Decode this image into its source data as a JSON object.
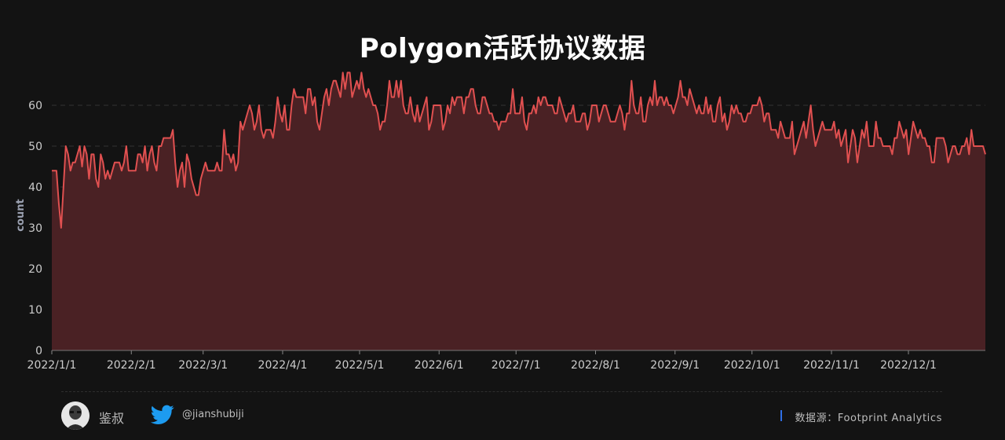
{
  "title": "Polygon活跃协议数据",
  "footer": {
    "author": "鉴叔",
    "handle": "@jianshubiji",
    "source_label": "数据源：",
    "source_name": "Footprint  Analytics"
  },
  "colors": {
    "background": "#131313",
    "line": "#e05050",
    "area": "#4a2124",
    "grid": "#333333",
    "text": "#cccccc",
    "twitter": "#1d9bf0",
    "accent": "#2f6fe6"
  },
  "icons": [
    "avatar",
    "twitter-icon"
  ],
  "chart_data": {
    "type": "area",
    "title": "Polygon活跃协议数据",
    "xlabel": "",
    "ylabel": "count",
    "ylim": [
      0,
      70
    ],
    "yticks": [
      0,
      10,
      20,
      30,
      40,
      50,
      60
    ],
    "grid": true,
    "x_start": "2022/1/1",
    "x_end": "2022/12/31",
    "xtick_labels": [
      "2022/1/1",
      "2022/2/1",
      "2022/3/1",
      "2022/4/1",
      "2022/5/1",
      "2022/6/1",
      "2022/7/1",
      "2022/8/1",
      "2022/9/1",
      "2022/10/1",
      "2022/11/1",
      "2022/12/1"
    ],
    "series": [
      {
        "name": "",
        "values": [
          44,
          44,
          44,
          36,
          30,
          40,
          50,
          48,
          44,
          46,
          46,
          48,
          50,
          45,
          50,
          48,
          42,
          48,
          48,
          42,
          40,
          48,
          46,
          42,
          44,
          42,
          44,
          46,
          46,
          46,
          44,
          46,
          50,
          44,
          44,
          44,
          44,
          48,
          48,
          46,
          50,
          44,
          48,
          50,
          46,
          44,
          50,
          50,
          52,
          52,
          52,
          52,
          54,
          46,
          40,
          44,
          46,
          40,
          48,
          46,
          42,
          40,
          38,
          38,
          42,
          44,
          46,
          44,
          44,
          44,
          44,
          46,
          44,
          44,
          54,
          48,
          48,
          46,
          48,
          44,
          46,
          56,
          54,
          56,
          58,
          60,
          58,
          54,
          56,
          60,
          54,
          52,
          54,
          54,
          54,
          52,
          56,
          62,
          58,
          56,
          60,
          54,
          54,
          60,
          64,
          62,
          62,
          62,
          62,
          58,
          64,
          64,
          60,
          62,
          56,
          54,
          58,
          62,
          64,
          60,
          64,
          66,
          66,
          64,
          62,
          68,
          64,
          68,
          68,
          62,
          64,
          66,
          64,
          68,
          64,
          62,
          64,
          62,
          60,
          60,
          58,
          54,
          56,
          56,
          60,
          66,
          62,
          62,
          66,
          62,
          66,
          60,
          58,
          58,
          62,
          58,
          56,
          60,
          56,
          58,
          60,
          62,
          54,
          56,
          60,
          60,
          60,
          60,
          54,
          56,
          60,
          58,
          62,
          60,
          62,
          62,
          62,
          58,
          62,
          62,
          64,
          64,
          60,
          58,
          58,
          62,
          62,
          60,
          58,
          58,
          56,
          56,
          54,
          56,
          56,
          56,
          58,
          58,
          64,
          58,
          58,
          58,
          62,
          56,
          54,
          58,
          58,
          60,
          58,
          62,
          60,
          62,
          62,
          60,
          60,
          60,
          58,
          58,
          62,
          60,
          58,
          56,
          58,
          58,
          60,
          56,
          56,
          56,
          58,
          58,
          54,
          56,
          60,
          60,
          60,
          56,
          58,
          60,
          60,
          58,
          56,
          56,
          56,
          58,
          60,
          58,
          54,
          58,
          58,
          66,
          60,
          58,
          58,
          62,
          56,
          56,
          60,
          62,
          60,
          66,
          60,
          62,
          62,
          60,
          62,
          60,
          60,
          58,
          60,
          62,
          66,
          62,
          62,
          60,
          64,
          62,
          60,
          58,
          60,
          58,
          58,
          62,
          58,
          60,
          56,
          56,
          60,
          62,
          56,
          58,
          54,
          56,
          60,
          58,
          60,
          58,
          58,
          56,
          56,
          58,
          58,
          60,
          60,
          60,
          62,
          60,
          56,
          58,
          58,
          54,
          54,
          54,
          52,
          56,
          54,
          52,
          52,
          52,
          56,
          48,
          50,
          52,
          54,
          56,
          52,
          56,
          60,
          54,
          50,
          52,
          54,
          56,
          54,
          54,
          54,
          54,
          56,
          52,
          54,
          50,
          52,
          54,
          46,
          50,
          54,
          52,
          46,
          50,
          54,
          52,
          56,
          50,
          50,
          50,
          56,
          52,
          52,
          50,
          50,
          50,
          50,
          48,
          52,
          52,
          56,
          54,
          52,
          54,
          48,
          52,
          56,
          54,
          52,
          54,
          52,
          52,
          50,
          50,
          46,
          46,
          52,
          52,
          52,
          52,
          50,
          46,
          48,
          50,
          50,
          48,
          48,
          50,
          50,
          52,
          48,
          54,
          50,
          50,
          50,
          50,
          50,
          48
        ]
      }
    ]
  }
}
